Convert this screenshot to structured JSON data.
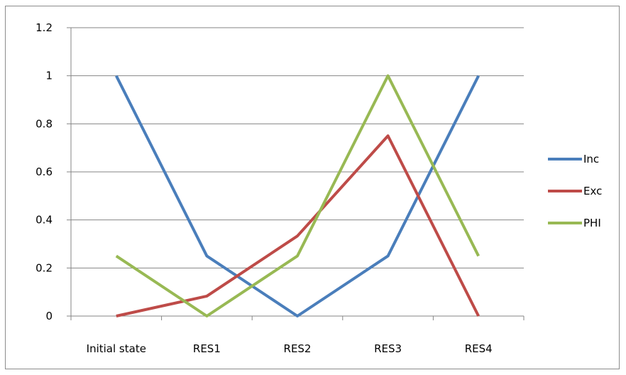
{
  "chart_data": {
    "type": "line",
    "title": "",
    "xlabel": "",
    "ylabel": "",
    "categories": [
      "Initial state",
      "RES1",
      "RES2",
      "RES3",
      "RES4"
    ],
    "ylim": [
      0,
      1.2
    ],
    "yticks": [
      0,
      0.2,
      0.4,
      0.6,
      0.8,
      1,
      1.2
    ],
    "ytick_labels": [
      "0",
      "0.2",
      "0.4",
      "0.6",
      "0.8",
      "1",
      "1.2"
    ],
    "grid": true,
    "legend_position": "right",
    "series": [
      {
        "name": "Inc",
        "color": "#4a7ebb",
        "values": [
          1,
          0.25,
          0,
          0.25,
          1
        ]
      },
      {
        "name": "Exc",
        "color": "#be4b48",
        "values": [
          0,
          0.083,
          0.333,
          0.75,
          0
        ]
      },
      {
        "name": "PHI",
        "color": "#98b954",
        "values": [
          0.25,
          0,
          0.25,
          1,
          0.25
        ]
      }
    ]
  }
}
